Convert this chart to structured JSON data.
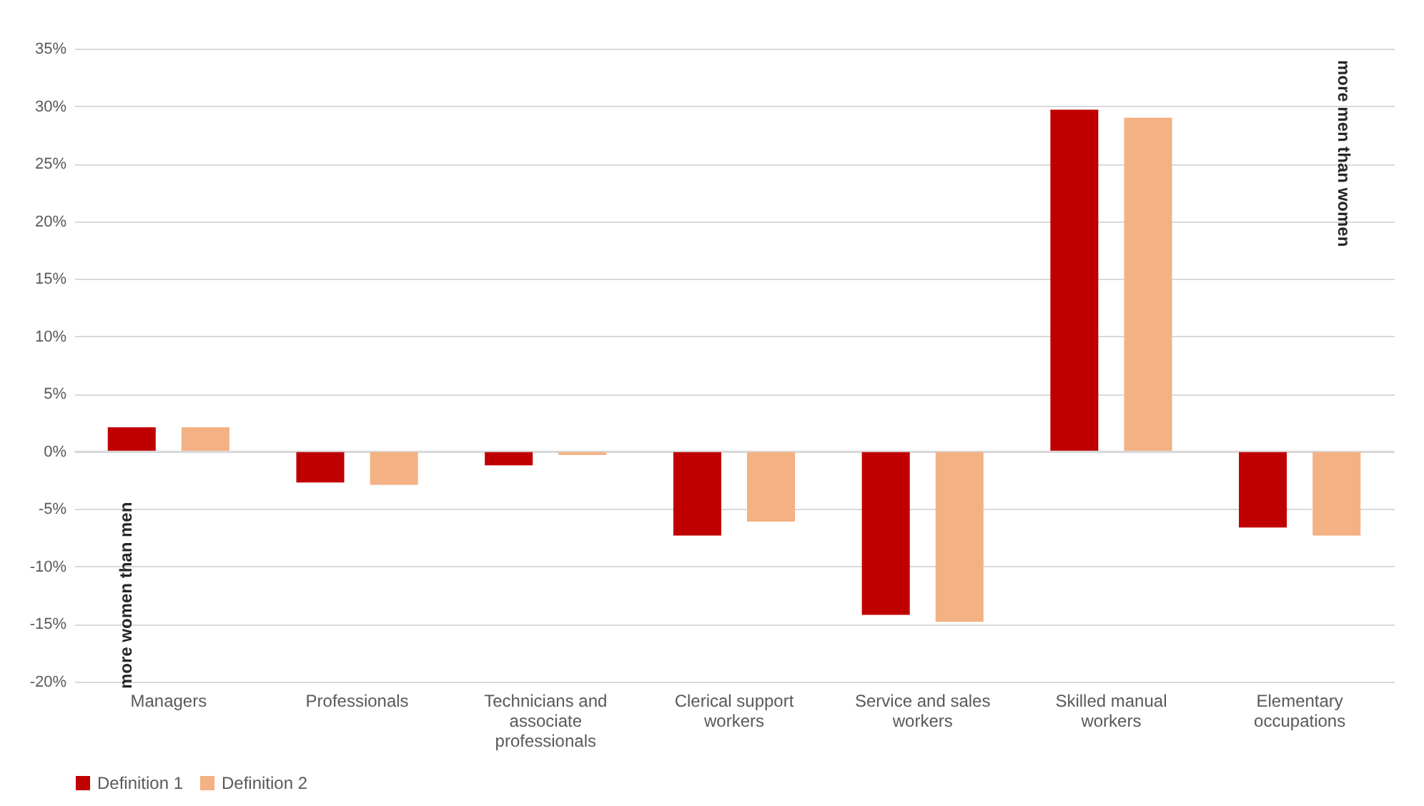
{
  "chart_data": {
    "type": "bar",
    "categories": [
      "Managers",
      "Professionals",
      "Technicians and associate professionals",
      "Clerical support workers",
      "Service and sales workers",
      "Skilled manual workers",
      "Elementary occupations"
    ],
    "series": [
      {
        "name": "Definition 1",
        "color": "#c00000",
        "values": [
          2.1,
          -2.7,
          -1.2,
          -7.3,
          -14.2,
          29.7,
          -6.6
        ]
      },
      {
        "name": "Definition 2",
        "color": "#f4b183",
        "values": [
          2.1,
          -2.9,
          -0.3,
          -6.1,
          -14.8,
          29.0,
          -7.3
        ]
      }
    ],
    "ylim": [
      -20,
      35
    ],
    "yticks": [
      {
        "value": -20,
        "label": "-20%"
      },
      {
        "value": -15,
        "label": "-15%"
      },
      {
        "value": -10,
        "label": "-10%"
      },
      {
        "value": -5,
        "label": "-5%"
      },
      {
        "value": 0,
        "label": "0%"
      },
      {
        "value": 5,
        "label": "5%"
      },
      {
        "value": 10,
        "label": "10%"
      },
      {
        "value": 15,
        "label": "15%"
      },
      {
        "value": 20,
        "label": "20%"
      },
      {
        "value": 25,
        "label": "25%"
      },
      {
        "value": 30,
        "label": "30%"
      },
      {
        "value": 35,
        "label": "35%"
      }
    ],
    "annotations": [
      "more women than men",
      "more men than women"
    ],
    "grid": "y",
    "legend": "bottom"
  }
}
